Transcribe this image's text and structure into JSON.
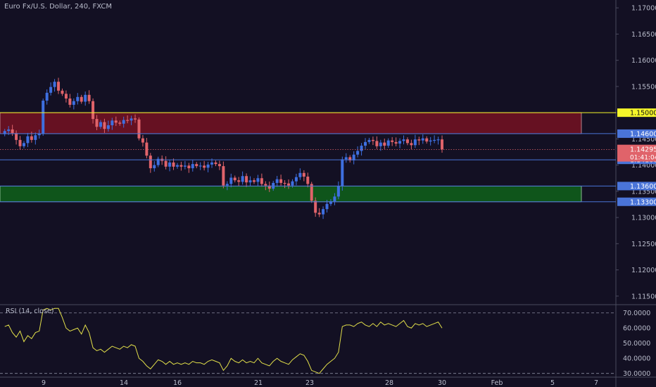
{
  "symbol_title": "Euro Fx/U.S. Dollar, 240, FXCM",
  "rsi_title": "RSI (14, close)",
  "colors": {
    "background": "#131023",
    "up_candle": "#3e6fe0",
    "down_candle": "#e0636a",
    "resistance_zone": "#6a1223",
    "support_zone": "#0f5a1b",
    "level_line_yellow": "#f5f52a",
    "level_line_blue": "#4a74d8",
    "current_price": "#e0636a",
    "rsi_line": "#e3e04a",
    "axis_text": "#b9bccb"
  },
  "chart_data": [
    {
      "type": "candlestick",
      "price_axis_ticks": [
        "1.17000",
        "1.16500",
        "1.16000",
        "1.15500",
        "1.15000",
        "1.14500",
        "1.14000",
        "1.13500",
        "1.13000",
        "1.12500",
        "1.12000",
        "1.11500"
      ],
      "time_axis_ticks": [
        "9",
        "14",
        "16",
        "21",
        "23",
        "28",
        "30",
        "Feb",
        "5",
        "7"
      ],
      "ylim": [
        1.1135,
        1.1715
      ],
      "zones": [
        {
          "name": "resistance",
          "from": 1.146,
          "to": 1.15
        },
        {
          "name": "support",
          "from": 1.133,
          "to": 1.136
        }
      ],
      "horizontal_levels": [
        {
          "value": 1.15,
          "label": "1.15000",
          "style": "yellow"
        },
        {
          "value": 1.146,
          "label": "1.14600",
          "style": "blue"
        },
        {
          "value": 1.141,
          "label": "1.14100",
          "style": "blue"
        },
        {
          "value": 1.136,
          "label": "1.13600",
          "style": "blue"
        },
        {
          "value": 1.133,
          "label": "1.13300",
          "style": "blue"
        }
      ],
      "current_price": {
        "value": 1.14295,
        "label": "1.14295",
        "countdown": "01:41:04"
      },
      "closes": [
        1.1465,
        1.1468,
        1.1461,
        1.1448,
        1.1436,
        1.1442,
        1.1455,
        1.1448,
        1.1457,
        1.146,
        1.1523,
        1.1538,
        1.1549,
        1.1559,
        1.1542,
        1.1536,
        1.1527,
        1.1515,
        1.1522,
        1.153,
        1.1521,
        1.1534,
        1.1522,
        1.1488,
        1.1473,
        1.1482,
        1.1469,
        1.1476,
        1.1485,
        1.1481,
        1.1479,
        1.1486,
        1.1485,
        1.1489,
        1.1487,
        1.1451,
        1.1443,
        1.1418,
        1.1394,
        1.14,
        1.1412,
        1.1408,
        1.1397,
        1.1405,
        1.1397,
        1.14,
        1.1397,
        1.1399,
        1.1394,
        1.1402,
        1.1398,
        1.1399,
        1.1395,
        1.1401,
        1.1405,
        1.1402,
        1.1398,
        1.1361,
        1.1364,
        1.1376,
        1.1371,
        1.1368,
        1.1379,
        1.1367,
        1.1371,
        1.1368,
        1.1375,
        1.1364,
        1.1361,
        1.1355,
        1.1366,
        1.1373,
        1.1366,
        1.1365,
        1.1361,
        1.1369,
        1.1377,
        1.1385,
        1.1378,
        1.1364,
        1.1332,
        1.1309,
        1.1306,
        1.1316,
        1.1326,
        1.1331,
        1.134,
        1.136,
        1.1411,
        1.1415,
        1.1409,
        1.142,
        1.1427,
        1.1437,
        1.1444,
        1.1448,
        1.1446,
        1.1436,
        1.1443,
        1.1437,
        1.1447,
        1.1444,
        1.1441,
        1.1446,
        1.1449,
        1.1442,
        1.1438,
        1.1449,
        1.1447,
        1.1451,
        1.1445,
        1.1447,
        1.1448,
        1.1449,
        1.143
      ],
      "rsi": {
        "ylim": [
          28,
          75
        ],
        "ticks": [
          "70.0000",
          "60.0000",
          "50.0000",
          "40.0000",
          "30.0000"
        ],
        "overbought": 70,
        "oversold": 30,
        "values": [
          61,
          62,
          57,
          54,
          58,
          51,
          55,
          53,
          57,
          58,
          72,
          73,
          72,
          73,
          73,
          67,
          60,
          58,
          59,
          60,
          56,
          62,
          57,
          47,
          45,
          46,
          44,
          46,
          48,
          47,
          46,
          48,
          47,
          49,
          48,
          40,
          38,
          35,
          33,
          36,
          39,
          38,
          36,
          38,
          36,
          37,
          36,
          37,
          36,
          38,
          37,
          37,
          36,
          38,
          39,
          38,
          37,
          32,
          35,
          40,
          38,
          37,
          39,
          37,
          38,
          37,
          40,
          37,
          36,
          35,
          38,
          40,
          38,
          37,
          36,
          39,
          41,
          43,
          42,
          38,
          32,
          31,
          30,
          33,
          36,
          38,
          40,
          44,
          61,
          62,
          62,
          61,
          63,
          64,
          62,
          61,
          63,
          61,
          64,
          62,
          63,
          62,
          61,
          63,
          65,
          61,
          60,
          63,
          62,
          63,
          61,
          62,
          63,
          64,
          60
        ]
      }
    }
  ]
}
